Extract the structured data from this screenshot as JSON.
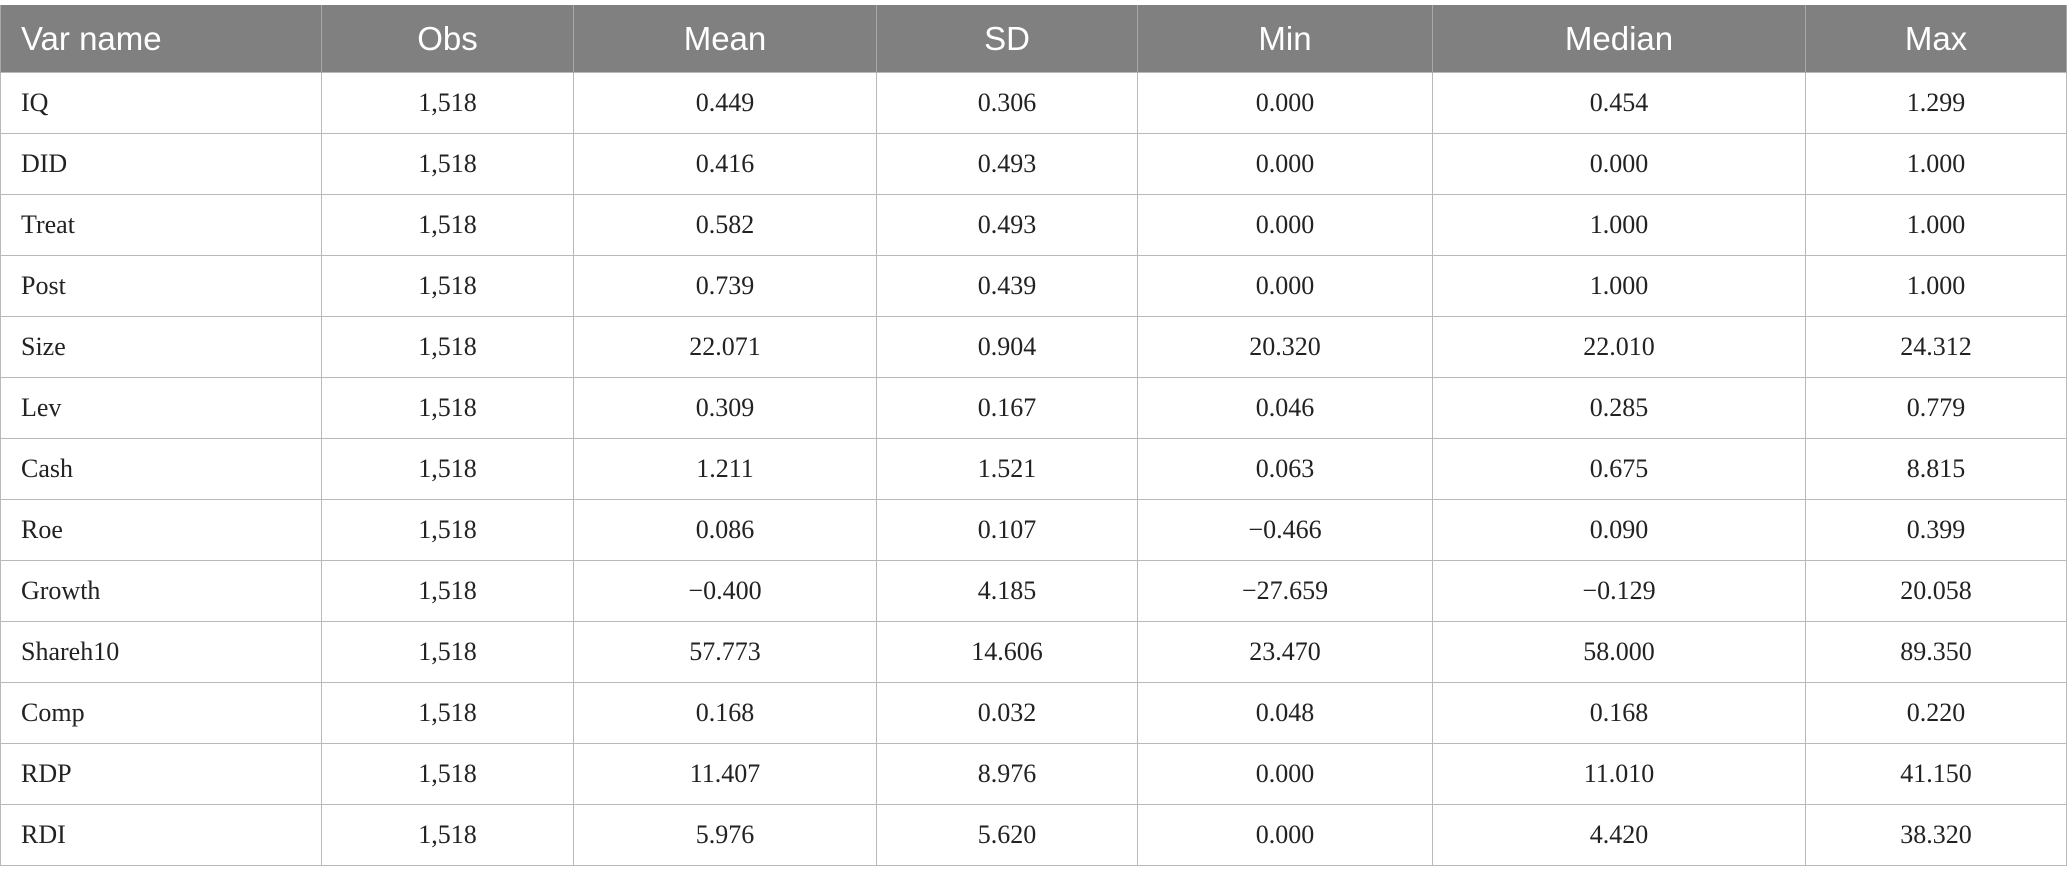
{
  "table": {
    "headers": [
      "Var name",
      "Obs",
      "Mean",
      "SD",
      "Min",
      "Median",
      "Max"
    ],
    "rows": [
      [
        "IQ",
        "1,518",
        "0.449",
        "0.306",
        "0.000",
        "0.454",
        "1.299"
      ],
      [
        "DID",
        "1,518",
        "0.416",
        "0.493",
        "0.000",
        "0.000",
        "1.000"
      ],
      [
        "Treat",
        "1,518",
        "0.582",
        "0.493",
        "0.000",
        "1.000",
        "1.000"
      ],
      [
        "Post",
        "1,518",
        "0.739",
        "0.439",
        "0.000",
        "1.000",
        "1.000"
      ],
      [
        "Size",
        "1,518",
        "22.071",
        "0.904",
        "20.320",
        "22.010",
        "24.312"
      ],
      [
        "Lev",
        "1,518",
        "0.309",
        "0.167",
        "0.046",
        "0.285",
        "0.779"
      ],
      [
        "Cash",
        "1,518",
        "1.211",
        "1.521",
        "0.063",
        "0.675",
        "8.815"
      ],
      [
        "Roe",
        "1,518",
        "0.086",
        "0.107",
        "−0.466",
        "0.090",
        "0.399"
      ],
      [
        "Growth",
        "1,518",
        "−0.400",
        "4.185",
        "−27.659",
        "−0.129",
        "20.058"
      ],
      [
        "Shareh10",
        "1,518",
        "57.773",
        "14.606",
        "23.470",
        "58.000",
        "89.350"
      ],
      [
        "Comp",
        "1,518",
        "0.168",
        "0.032",
        "0.048",
        "0.168",
        "0.220"
      ],
      [
        "RDP",
        "1,518",
        "11.407",
        "8.976",
        "0.000",
        "11.010",
        "41.150"
      ],
      [
        "RDI",
        "1,518",
        "5.976",
        "5.620",
        "0.000",
        "4.420",
        "38.320"
      ]
    ]
  },
  "colors": {
    "header_background": "#808080",
    "header_text": "#ffffff",
    "grid_line": "#b9b9b9"
  }
}
